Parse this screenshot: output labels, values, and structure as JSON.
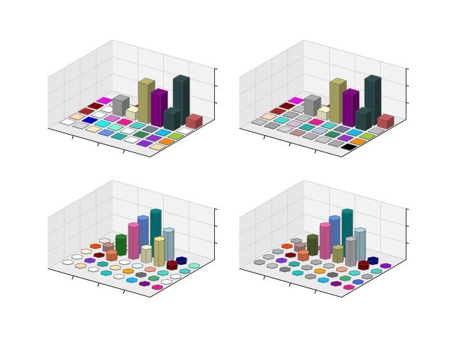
{
  "figure": {
    "background": "#ffffff",
    "pane_color": "#f2f2f2",
    "pane_side_color": "#e6e6e6",
    "grid_color": "#d0d0d0",
    "axis_color": "#000000"
  },
  "chart_data": [
    {
      "type": "bar3d",
      "position": "top-left",
      "marker": "square",
      "title": "",
      "xlabel": "",
      "ylabel": "",
      "zlabel": "",
      "grid": true,
      "zlim": [
        0,
        3
      ],
      "cells": [
        {
          "x": 0,
          "y": 0,
          "z": 0.02,
          "color": "#ffffff"
        },
        {
          "x": 1,
          "y": 0,
          "z": 0.02,
          "color": "#d9d9d9"
        },
        {
          "x": 2,
          "y": 0,
          "z": 0.02,
          "color": "#ffe4c4"
        },
        {
          "x": 3,
          "y": 0,
          "z": 0.02,
          "color": "#6495ed"
        },
        {
          "x": 4,
          "y": 0,
          "z": 0.02,
          "color": "#20b2aa"
        },
        {
          "x": 5,
          "y": 0,
          "z": 0.02,
          "color": "#ffffff"
        },
        {
          "x": 6,
          "y": 0,
          "z": 0.02,
          "color": "#8a2be2"
        },
        {
          "x": 7,
          "y": 0,
          "z": 0.02,
          "color": "#f5deb3"
        },
        {
          "x": 0,
          "y": 1,
          "z": 0.02,
          "color": "#ffdab9"
        },
        {
          "x": 1,
          "y": 1,
          "z": 0.02,
          "color": "#0000cd"
        },
        {
          "x": 2,
          "y": 1,
          "z": 0.02,
          "color": "#00ffff"
        },
        {
          "x": 3,
          "y": 1,
          "z": 0.02,
          "color": "#7fffd4"
        },
        {
          "x": 4,
          "y": 1,
          "z": 0.02,
          "color": "#ffffff"
        },
        {
          "x": 5,
          "y": 1,
          "z": 0.02,
          "color": "#2e8b57"
        },
        {
          "x": 6,
          "y": 1,
          "z": 0.02,
          "color": "#9932cc"
        },
        {
          "x": 7,
          "y": 1,
          "z": 0.02,
          "color": "#ff8c00"
        },
        {
          "x": 0,
          "y": 2,
          "z": 0.02,
          "color": "#b22222"
        },
        {
          "x": 1,
          "y": 2,
          "z": 0.02,
          "color": "#ffffff"
        },
        {
          "x": 2,
          "y": 2,
          "z": 0.02,
          "color": "#da70d6"
        },
        {
          "x": 3,
          "y": 2,
          "z": 0.02,
          "color": "#ff1493"
        },
        {
          "x": 4,
          "y": 2,
          "z": 0.02,
          "color": "#48d1cc"
        },
        {
          "x": 5,
          "y": 2,
          "z": 0.02,
          "color": "#708090"
        },
        {
          "x": 6,
          "y": 2,
          "z": 0.02,
          "color": "#00bfff"
        },
        {
          "x": 7,
          "y": 2,
          "z": 0.02,
          "color": "#9acd32"
        },
        {
          "x": 0,
          "y": 3,
          "z": 0.02,
          "color": "#800000"
        },
        {
          "x": 1,
          "y": 3,
          "z": 0.02,
          "color": "#ffffff"
        },
        {
          "x": 2,
          "y": 3,
          "z": 0.9,
          "color": "#a9a9a9"
        },
        {
          "x": 3,
          "y": 3,
          "z": 0.45,
          "color": "#fffacd"
        },
        {
          "x": 4,
          "y": 3,
          "z": 2.3,
          "color": "#bdb76b"
        },
        {
          "x": 5,
          "y": 3,
          "z": 1.9,
          "color": "#8b008b"
        },
        {
          "x": 6,
          "y": 3,
          "z": 1.0,
          "color": "#2f4f4f"
        },
        {
          "x": 7,
          "y": 3,
          "z": 0.02,
          "color": "#ffffff"
        },
        {
          "x": 0,
          "y": 4,
          "z": 0.02,
          "color": "#ff00ff"
        },
        {
          "x": 1,
          "y": 4,
          "z": 0.02,
          "color": "#ffffff"
        },
        {
          "x": 2,
          "y": 4,
          "z": 0.02,
          "color": "#ffffff"
        },
        {
          "x": 3,
          "y": 4,
          "z": 0.35,
          "color": "#dc143c"
        },
        {
          "x": 4,
          "y": 4,
          "z": 0.1,
          "color": "#40e0d0"
        },
        {
          "x": 5,
          "y": 4,
          "z": 0.2,
          "color": "#556b2f"
        },
        {
          "x": 6,
          "y": 4,
          "z": 2.6,
          "color": "#2f4f4f"
        },
        {
          "x": 7,
          "y": 4,
          "z": 0.5,
          "color": "#cd5c5c"
        }
      ]
    },
    {
      "type": "bar3d",
      "position": "top-right",
      "marker": "square",
      "title": "",
      "xlabel": "",
      "ylabel": "",
      "zlabel": "",
      "grid": true,
      "zlim": [
        0,
        3
      ],
      "cells": [
        {
          "x": 0,
          "y": 0,
          "z": 0.02,
          "color": "#c0c0c0"
        },
        {
          "x": 1,
          "y": 0,
          "z": 0.02,
          "color": "#a0a0a0"
        },
        {
          "x": 2,
          "y": 0,
          "z": 0.02,
          "color": "#d3d3d3"
        },
        {
          "x": 3,
          "y": 0,
          "z": 0.02,
          "color": "#bc8f8f"
        },
        {
          "x": 4,
          "y": 0,
          "z": 0.02,
          "color": "#b0b0b0"
        },
        {
          "x": 5,
          "y": 0,
          "z": 0.02,
          "color": "#c8c8c8"
        },
        {
          "x": 6,
          "y": 0,
          "z": 0.02,
          "color": "#a9a9a9"
        },
        {
          "x": 7,
          "y": 0,
          "z": 0.02,
          "color": "#000000"
        },
        {
          "x": 0,
          "y": 1,
          "z": 0.02,
          "color": "#ffdab9"
        },
        {
          "x": 1,
          "y": 1,
          "z": 0.02,
          "color": "#40e0d0"
        },
        {
          "x": 2,
          "y": 1,
          "z": 0.02,
          "color": "#d8bfd8"
        },
        {
          "x": 3,
          "y": 1,
          "z": 0.02,
          "color": "#20b2aa"
        },
        {
          "x": 4,
          "y": 1,
          "z": 0.02,
          "color": "#b0c4de"
        },
        {
          "x": 5,
          "y": 1,
          "z": 0.02,
          "color": "#2e8b57"
        },
        {
          "x": 6,
          "y": 1,
          "z": 0.02,
          "color": "#9932cc"
        },
        {
          "x": 7,
          "y": 1,
          "z": 0.02,
          "color": "#ff8c00"
        },
        {
          "x": 0,
          "y": 2,
          "z": 0.02,
          "color": "#b22222"
        },
        {
          "x": 1,
          "y": 2,
          "z": 0.02,
          "color": "#a9a9a9"
        },
        {
          "x": 2,
          "y": 2,
          "z": 0.02,
          "color": "#c0c0c0"
        },
        {
          "x": 3,
          "y": 2,
          "z": 0.02,
          "color": "#ff1493"
        },
        {
          "x": 4,
          "y": 2,
          "z": 0.02,
          "color": "#48d1cc"
        },
        {
          "x": 5,
          "y": 2,
          "z": 0.02,
          "color": "#708090"
        },
        {
          "x": 6,
          "y": 2,
          "z": 0.02,
          "color": "#00bfff"
        },
        {
          "x": 7,
          "y": 2,
          "z": 0.02,
          "color": "#9acd32"
        },
        {
          "x": 0,
          "y": 3,
          "z": 0.02,
          "color": "#800000"
        },
        {
          "x": 1,
          "y": 3,
          "z": 0.02,
          "color": "#c0c0c0"
        },
        {
          "x": 2,
          "y": 3,
          "z": 0.9,
          "color": "#a9a9a9"
        },
        {
          "x": 3,
          "y": 3,
          "z": 0.45,
          "color": "#fffacd"
        },
        {
          "x": 4,
          "y": 3,
          "z": 2.3,
          "color": "#bdb76b"
        },
        {
          "x": 5,
          "y": 3,
          "z": 1.9,
          "color": "#8b008b"
        },
        {
          "x": 6,
          "y": 3,
          "z": 1.0,
          "color": "#2f4f4f"
        },
        {
          "x": 7,
          "y": 3,
          "z": 0.02,
          "color": "#c0c0c0"
        },
        {
          "x": 0,
          "y": 4,
          "z": 0.02,
          "color": "#ff00ff"
        },
        {
          "x": 1,
          "y": 4,
          "z": 0.02,
          "color": "#a9a9a9"
        },
        {
          "x": 2,
          "y": 4,
          "z": 0.02,
          "color": "#d3d3d3"
        },
        {
          "x": 3,
          "y": 4,
          "z": 0.35,
          "color": "#dc143c"
        },
        {
          "x": 4,
          "y": 4,
          "z": 0.1,
          "color": "#40e0d0"
        },
        {
          "x": 5,
          "y": 4,
          "z": 0.2,
          "color": "#556b2f"
        },
        {
          "x": 6,
          "y": 4,
          "z": 2.6,
          "color": "#2f4f4f"
        },
        {
          "x": 7,
          "y": 4,
          "z": 0.5,
          "color": "#cd5c5c"
        }
      ]
    },
    {
      "type": "bar3d",
      "position": "bottom-left",
      "marker": "hexagon",
      "title": "",
      "xlabel": "",
      "ylabel": "",
      "zlabel": "",
      "grid": true,
      "zlim": [
        0,
        3
      ],
      "cells": [
        {
          "x": 0,
          "y": 0,
          "z": 0.02,
          "color": "#ffffff"
        },
        {
          "x": 1,
          "y": 0,
          "z": 0.02,
          "color": "#ffdab9"
        },
        {
          "x": 2,
          "y": 0,
          "z": 0.02,
          "color": "#ffffff"
        },
        {
          "x": 3,
          "y": 0,
          "z": 0.02,
          "color": "#00ced1"
        },
        {
          "x": 4,
          "y": 0,
          "z": 0.02,
          "color": "#ffffff"
        },
        {
          "x": 5,
          "y": 0,
          "z": 0.02,
          "color": "#00bfff"
        },
        {
          "x": 6,
          "y": 0,
          "z": 0.02,
          "color": "#8b008b"
        },
        {
          "x": 7,
          "y": 0,
          "z": 0.02,
          "color": "#ff1493"
        },
        {
          "x": 0,
          "y": 1,
          "z": 0.02,
          "color": "#ffffff"
        },
        {
          "x": 1,
          "y": 1,
          "z": 0.02,
          "color": "#8a2be2"
        },
        {
          "x": 2,
          "y": 1,
          "z": 0.02,
          "color": "#20b2aa"
        },
        {
          "x": 3,
          "y": 1,
          "z": 0.02,
          "color": "#ffe4b5"
        },
        {
          "x": 4,
          "y": 1,
          "z": 0.02,
          "color": "#ffa500"
        },
        {
          "x": 5,
          "y": 1,
          "z": 0.02,
          "color": "#696969"
        },
        {
          "x": 6,
          "y": 1,
          "z": 0.02,
          "color": "#3cb371"
        },
        {
          "x": 7,
          "y": 1,
          "z": 0.02,
          "color": "#ffffff"
        },
        {
          "x": 0,
          "y": 2,
          "z": 0.02,
          "color": "#fffacd"
        },
        {
          "x": 1,
          "y": 2,
          "z": 0.02,
          "color": "#800000"
        },
        {
          "x": 2,
          "y": 2,
          "z": 0.4,
          "color": "#ff7f50"
        },
        {
          "x": 3,
          "y": 2,
          "z": 0.02,
          "color": "#ffffff"
        },
        {
          "x": 4,
          "y": 2,
          "z": 0.02,
          "color": "#e0ffff"
        },
        {
          "x": 5,
          "y": 2,
          "z": 0.02,
          "color": "#ffa07a"
        },
        {
          "x": 6,
          "y": 2,
          "z": 0.02,
          "color": "#40e0d0"
        },
        {
          "x": 7,
          "y": 2,
          "z": 0.02,
          "color": "#ffffff"
        },
        {
          "x": 0,
          "y": 3,
          "z": 0.02,
          "color": "#ff4500"
        },
        {
          "x": 1,
          "y": 3,
          "z": 0.3,
          "color": "#bc8f8f"
        },
        {
          "x": 2,
          "y": 3,
          "z": 1.0,
          "color": "#228b22"
        },
        {
          "x": 3,
          "y": 3,
          "z": 1.9,
          "color": "#ff69b4"
        },
        {
          "x": 4,
          "y": 3,
          "z": 0.8,
          "color": "#fffacd"
        },
        {
          "x": 5,
          "y": 3,
          "z": 1.5,
          "color": "#f0e68c"
        },
        {
          "x": 6,
          "y": 3,
          "z": 0.3,
          "color": "#8b0000"
        },
        {
          "x": 7,
          "y": 3,
          "z": 0.02,
          "color": "#48d1cc"
        },
        {
          "x": 0,
          "y": 4,
          "z": 0.02,
          "color": "#ffe4e1"
        },
        {
          "x": 1,
          "y": 4,
          "z": 0.02,
          "color": "#ffffff"
        },
        {
          "x": 2,
          "y": 4,
          "z": 0.02,
          "color": "#ffffff"
        },
        {
          "x": 3,
          "y": 4,
          "z": 2.0,
          "color": "#6495ed"
        },
        {
          "x": 4,
          "y": 4,
          "z": 2.6,
          "color": "#008b8b"
        },
        {
          "x": 5,
          "y": 4,
          "z": 1.7,
          "color": "#add8e6"
        },
        {
          "x": 6,
          "y": 4,
          "z": 0.2,
          "color": "#000080"
        },
        {
          "x": 7,
          "y": 4,
          "z": 0.02,
          "color": "#7fffd4"
        }
      ]
    },
    {
      "type": "bar3d",
      "position": "bottom-right",
      "marker": "hexagon",
      "title": "",
      "xlabel": "",
      "ylabel": "",
      "zlabel": "",
      "grid": true,
      "zlim": [
        0,
        3
      ],
      "cells": [
        {
          "x": 0,
          "y": 0,
          "z": 0.02,
          "color": "#a9a9a9"
        },
        {
          "x": 1,
          "y": 0,
          "z": 0.02,
          "color": "#c0c0c0"
        },
        {
          "x": 2,
          "y": 0,
          "z": 0.02,
          "color": "#808080"
        },
        {
          "x": 3,
          "y": 0,
          "z": 0.02,
          "color": "#00ced1"
        },
        {
          "x": 4,
          "y": 0,
          "z": 0.02,
          "color": "#a0a0a0"
        },
        {
          "x": 5,
          "y": 0,
          "z": 0.02,
          "color": "#00bfff"
        },
        {
          "x": 6,
          "y": 0,
          "z": 0.02,
          "color": "#8b008b"
        },
        {
          "x": 7,
          "y": 0,
          "z": 0.02,
          "color": "#ff1493"
        },
        {
          "x": 0,
          "y": 1,
          "z": 0.02,
          "color": "#c0c0c0"
        },
        {
          "x": 1,
          "y": 1,
          "z": 0.02,
          "color": "#8a2be2"
        },
        {
          "x": 2,
          "y": 1,
          "z": 0.02,
          "color": "#20b2aa"
        },
        {
          "x": 3,
          "y": 1,
          "z": 0.02,
          "color": "#a9a9a9"
        },
        {
          "x": 4,
          "y": 1,
          "z": 0.02,
          "color": "#ffa500"
        },
        {
          "x": 5,
          "y": 1,
          "z": 0.02,
          "color": "#696969"
        },
        {
          "x": 6,
          "y": 1,
          "z": 0.02,
          "color": "#3cb371"
        },
        {
          "x": 7,
          "y": 1,
          "z": 0.02,
          "color": "#4169e1"
        },
        {
          "x": 0,
          "y": 2,
          "z": 0.02,
          "color": "#b0b0b0"
        },
        {
          "x": 1,
          "y": 2,
          "z": 0.02,
          "color": "#800000"
        },
        {
          "x": 2,
          "y": 2,
          "z": 0.4,
          "color": "#ff7f50"
        },
        {
          "x": 3,
          "y": 2,
          "z": 0.02,
          "color": "#a9a9a9"
        },
        {
          "x": 4,
          "y": 2,
          "z": 0.02,
          "color": "#c0c0c0"
        },
        {
          "x": 5,
          "y": 2,
          "z": 0.02,
          "color": "#ffa07a"
        },
        {
          "x": 6,
          "y": 2,
          "z": 0.02,
          "color": "#40e0d0"
        },
        {
          "x": 7,
          "y": 2,
          "z": 0.02,
          "color": "#a9a9a9"
        },
        {
          "x": 0,
          "y": 3,
          "z": 0.02,
          "color": "#ff4500"
        },
        {
          "x": 1,
          "y": 3,
          "z": 0.3,
          "color": "#bc8f8f"
        },
        {
          "x": 2,
          "y": 3,
          "z": 1.0,
          "color": "#556b2f"
        },
        {
          "x": 3,
          "y": 3,
          "z": 1.9,
          "color": "#ff69b4"
        },
        {
          "x": 4,
          "y": 3,
          "z": 0.8,
          "color": "#bdb76b"
        },
        {
          "x": 5,
          "y": 3,
          "z": 1.5,
          "color": "#c0c0c0"
        },
        {
          "x": 6,
          "y": 3,
          "z": 0.3,
          "color": "#8b0000"
        },
        {
          "x": 7,
          "y": 3,
          "z": 0.02,
          "color": "#48d1cc"
        },
        {
          "x": 0,
          "y": 4,
          "z": 0.02,
          "color": "#a9a9a9"
        },
        {
          "x": 1,
          "y": 4,
          "z": 0.02,
          "color": "#c0c0c0"
        },
        {
          "x": 2,
          "y": 4,
          "z": 0.02,
          "color": "#808080"
        },
        {
          "x": 3,
          "y": 4,
          "z": 2.0,
          "color": "#6495ed"
        },
        {
          "x": 4,
          "y": 4,
          "z": 2.6,
          "color": "#008b8b"
        },
        {
          "x": 5,
          "y": 4,
          "z": 1.7,
          "color": "#add8e6"
        },
        {
          "x": 6,
          "y": 4,
          "z": 0.2,
          "color": "#000080"
        },
        {
          "x": 7,
          "y": 4,
          "z": 0.02,
          "color": "#9400d3"
        }
      ]
    }
  ]
}
